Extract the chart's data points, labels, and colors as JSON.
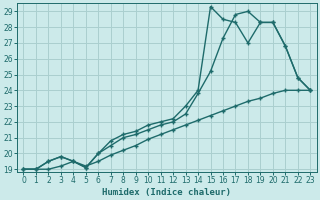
{
  "xlabel": "Humidex (Indice chaleur)",
  "bg_color": "#cceaea",
  "grid_color": "#aacfcf",
  "line_color": "#1e6b6b",
  "xlim": [
    -0.5,
    23.5
  ],
  "ylim": [
    18.85,
    29.5
  ],
  "yticks": [
    19,
    20,
    21,
    22,
    23,
    24,
    25,
    26,
    27,
    28,
    29
  ],
  "xticks": [
    0,
    1,
    2,
    3,
    4,
    5,
    6,
    7,
    8,
    9,
    10,
    11,
    12,
    13,
    14,
    15,
    16,
    17,
    18,
    19,
    20,
    21,
    22,
    23
  ],
  "line1_x": [
    0,
    1,
    2,
    3,
    4,
    5,
    6,
    7,
    8,
    9,
    10,
    11,
    12,
    13,
    14,
    15,
    16,
    17,
    18,
    19,
    20,
    21,
    22,
    23
  ],
  "line1_y": [
    19.0,
    19.0,
    19.5,
    19.8,
    19.5,
    19.1,
    20.0,
    20.8,
    21.2,
    21.4,
    21.8,
    22.0,
    22.2,
    23.0,
    24.0,
    29.3,
    28.5,
    28.3,
    27.0,
    28.3,
    28.3,
    26.8,
    24.8,
    24.0
  ],
  "line2_x": [
    0,
    1,
    2,
    3,
    4,
    5,
    6,
    7,
    8,
    9,
    10,
    11,
    12,
    13,
    14,
    15,
    16,
    17,
    18,
    19,
    20,
    21,
    22,
    23
  ],
  "line2_y": [
    19.0,
    19.0,
    19.5,
    19.8,
    19.5,
    19.1,
    20.0,
    20.5,
    21.0,
    21.2,
    21.5,
    21.8,
    22.0,
    22.5,
    23.8,
    25.2,
    27.3,
    28.8,
    29.0,
    28.3,
    28.3,
    26.8,
    24.8,
    24.0
  ],
  "line3_x": [
    0,
    1,
    2,
    3,
    4,
    5,
    6,
    7,
    8,
    9,
    10,
    11,
    12,
    13,
    14,
    15,
    16,
    17,
    18,
    19,
    20,
    21,
    22,
    23
  ],
  "line3_y": [
    19.0,
    19.0,
    19.0,
    19.2,
    19.5,
    19.2,
    19.5,
    19.9,
    20.2,
    20.5,
    20.9,
    21.2,
    21.5,
    21.8,
    22.1,
    22.4,
    22.7,
    23.0,
    23.3,
    23.5,
    23.8,
    24.0,
    24.0,
    24.0
  ]
}
